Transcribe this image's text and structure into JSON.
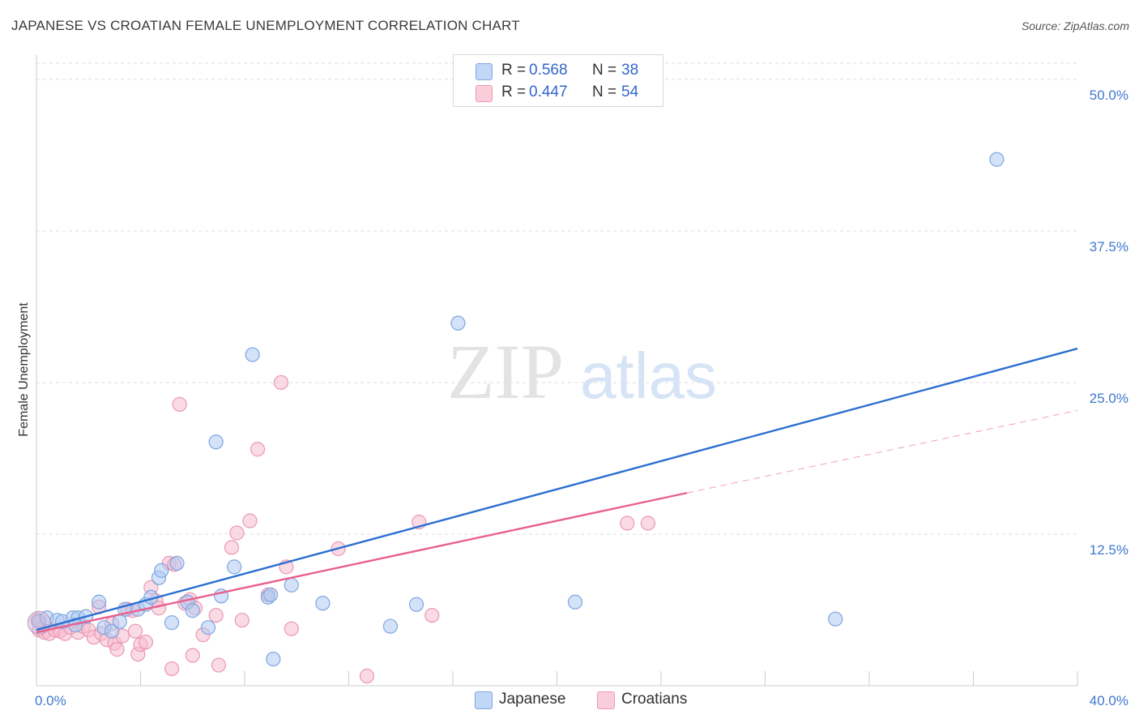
{
  "title": "JAPANESE VS CROATIAN FEMALE UNEMPLOYMENT CORRELATION CHART",
  "source": "Source: ZipAtlas.com",
  "watermark": {
    "zip": "ZIP",
    "atlas": "atlas"
  },
  "legend": {
    "rows": [
      {
        "r_label": "R =",
        "r_value": "0.568",
        "n_label": "N =",
        "n_value": "38"
      },
      {
        "r_label": "R =",
        "r_value": "0.447",
        "n_label": "N =",
        "n_value": "54"
      }
    ]
  },
  "bottom_legend": {
    "japanese": "Japanese",
    "croatians": "Croatians"
  },
  "colors": {
    "japanese_fill": "#aecbf2",
    "japanese_stroke": "#7fa6e0",
    "japanese_line": "#2c6fd1",
    "croatian_fill": "#f6bccd",
    "croatian_stroke": "#ec98b2",
    "croatian_line": "#e8608f",
    "axis_label": "#3f78cf",
    "grid": "#dddddd"
  },
  "chart_data": {
    "type": "scatter",
    "title": "JAPANESE VS CROATIAN FEMALE UNEMPLOYMENT CORRELATION CHART",
    "xlabel": "",
    "ylabel": "Female Unemployment",
    "xlim": [
      0,
      40
    ],
    "ylim": [
      0,
      52
    ],
    "x_tick_labels": [
      "0.0%",
      "40.0%"
    ],
    "y_ticks": [
      12.5,
      25.0,
      37.5,
      50.0
    ],
    "y_tick_labels": [
      "12.5%",
      "25.0%",
      "37.5%",
      "50.0%"
    ],
    "grid": true,
    "legend_position": "top-center",
    "series": [
      {
        "name": "Japanese",
        "r": 0.568,
        "n": 38,
        "trend": {
          "x": [
            0,
            40
          ],
          "y": [
            4.6,
            27.8
          ],
          "style": "solid"
        },
        "points": [
          [
            0.1,
            5.3
          ],
          [
            0.4,
            5.6
          ],
          [
            0.8,
            5.4
          ],
          [
            1.0,
            5.3
          ],
          [
            1.4,
            5.6
          ],
          [
            1.6,
            5.6
          ],
          [
            1.5,
            5.0
          ],
          [
            1.9,
            5.7
          ],
          [
            2.4,
            6.9
          ],
          [
            2.6,
            4.8
          ],
          [
            2.9,
            4.5
          ],
          [
            3.2,
            5.3
          ],
          [
            3.4,
            6.3
          ],
          [
            3.9,
            6.3
          ],
          [
            4.2,
            6.7
          ],
          [
            4.4,
            7.3
          ],
          [
            4.7,
            8.9
          ],
          [
            4.8,
            9.5
          ],
          [
            5.2,
            5.2
          ],
          [
            5.4,
            10.1
          ],
          [
            5.8,
            6.9
          ],
          [
            6.0,
            6.2
          ],
          [
            6.6,
            4.8
          ],
          [
            6.9,
            20.1
          ],
          [
            7.1,
            7.4
          ],
          [
            7.6,
            9.8
          ],
          [
            8.3,
            27.3
          ],
          [
            8.9,
            7.3
          ],
          [
            9.0,
            7.5
          ],
          [
            9.1,
            2.2
          ],
          [
            9.8,
            8.3
          ],
          [
            11.0,
            6.8
          ],
          [
            13.6,
            4.9
          ],
          [
            14.6,
            6.7
          ],
          [
            16.2,
            29.9
          ],
          [
            20.7,
            6.9
          ],
          [
            30.7,
            5.5
          ],
          [
            36.9,
            43.4
          ]
        ]
      },
      {
        "name": "Croatians",
        "r": 0.447,
        "n": 54,
        "trend": {
          "x": [
            0,
            25
          ],
          "y": [
            4.4,
            15.9
          ],
          "style": "solid",
          "extended_x": [
            25,
            40
          ],
          "extended_y": [
            15.9,
            22.7
          ],
          "extended_style": "dashed"
        },
        "points": [
          [
            0.1,
            4.6
          ],
          [
            0.3,
            4.4
          ],
          [
            0.5,
            4.3
          ],
          [
            0.7,
            4.6
          ],
          [
            0.9,
            4.5
          ],
          [
            1.1,
            4.3
          ],
          [
            1.3,
            4.8
          ],
          [
            1.6,
            4.4
          ],
          [
            1.8,
            4.9
          ],
          [
            2.0,
            4.6
          ],
          [
            2.2,
            4.0
          ],
          [
            2.4,
            6.5
          ],
          [
            2.5,
            4.3
          ],
          [
            2.7,
            3.8
          ],
          [
            2.9,
            5.1
          ],
          [
            3.0,
            3.5
          ],
          [
            3.1,
            3.0
          ],
          [
            3.3,
            4.1
          ],
          [
            3.5,
            6.3
          ],
          [
            3.7,
            6.2
          ],
          [
            3.8,
            4.5
          ],
          [
            3.9,
            2.6
          ],
          [
            4.0,
            3.4
          ],
          [
            4.2,
            3.6
          ],
          [
            4.4,
            8.1
          ],
          [
            4.6,
            7.0
          ],
          [
            4.7,
            6.4
          ],
          [
            5.1,
            10.1
          ],
          [
            5.2,
            1.4
          ],
          [
            5.3,
            10.0
          ],
          [
            5.5,
            23.2
          ],
          [
            5.7,
            6.8
          ],
          [
            5.9,
            7.1
          ],
          [
            6.0,
            2.5
          ],
          [
            6.1,
            6.4
          ],
          [
            6.4,
            4.2
          ],
          [
            6.9,
            5.8
          ],
          [
            7.0,
            1.7
          ],
          [
            7.5,
            11.4
          ],
          [
            7.7,
            12.6
          ],
          [
            7.9,
            5.4
          ],
          [
            8.2,
            13.6
          ],
          [
            8.5,
            19.5
          ],
          [
            8.9,
            7.5
          ],
          [
            9.4,
            25.0
          ],
          [
            9.6,
            9.8
          ],
          [
            9.8,
            4.7
          ],
          [
            11.6,
            11.3
          ],
          [
            12.7,
            0.8
          ],
          [
            14.7,
            13.5
          ],
          [
            15.2,
            5.8
          ],
          [
            22.7,
            13.4
          ],
          [
            23.5,
            13.4
          ],
          [
            0.05,
            5.4
          ]
        ]
      }
    ]
  }
}
